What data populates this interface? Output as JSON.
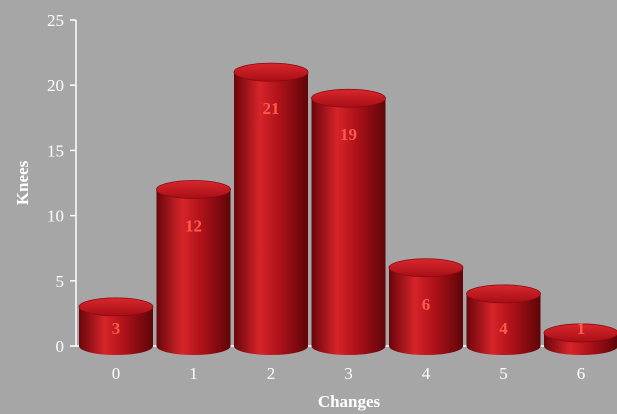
{
  "chart_data": {
    "type": "bar",
    "categories": [
      "0",
      "1",
      "2",
      "3",
      "4",
      "5",
      "6"
    ],
    "values": [
      3,
      12,
      21,
      19,
      6,
      4,
      1
    ],
    "data_labels": [
      "3",
      "12",
      "21",
      "19",
      "6",
      "4",
      "1"
    ],
    "title": "",
    "xlabel": "Changes",
    "ylabel": "Knees",
    "ylim": [
      0,
      25
    ],
    "yticks": [
      "0",
      "5",
      "10",
      "15",
      "20",
      "25"
    ],
    "grid": false,
    "legend": "none",
    "bar_style": "3d-cylinder",
    "colors": {
      "background": "#a6a6a6",
      "bar_light": "#d6242a",
      "bar_mid": "#b0121a",
      "bar_dark": "#5e0509",
      "bar_top": "#c41a20",
      "data_label": "#ff5a4a",
      "axis": "#ffffff",
      "text": "#ffffff"
    }
  }
}
